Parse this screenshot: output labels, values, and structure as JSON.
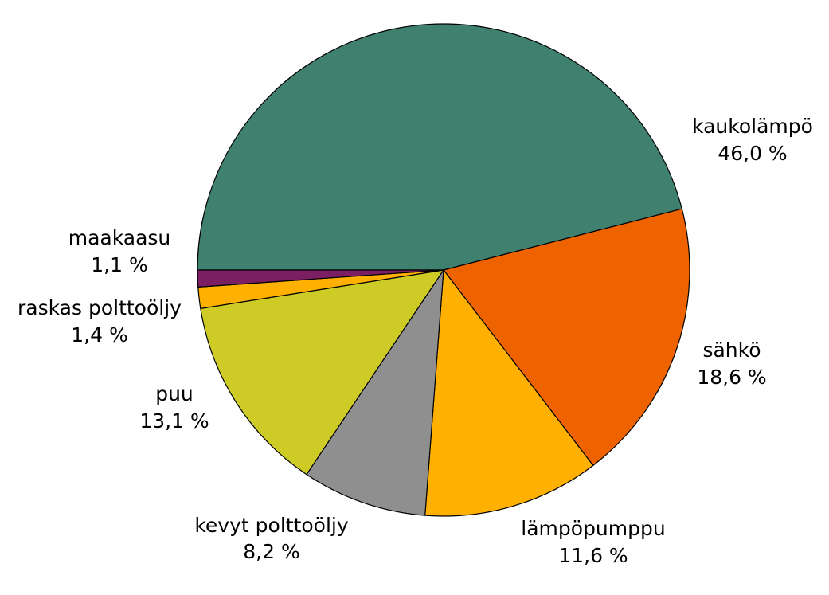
{
  "chart_data": {
    "type": "pie",
    "title": "",
    "slices": [
      {
        "label": "kaukolämpö",
        "value": 46.0,
        "value_label": "46,0 %",
        "color": "#3f806e"
      },
      {
        "label": "sähkö",
        "value": 18.6,
        "value_label": "18,6 %",
        "color": "#ee6300"
      },
      {
        "label": "lämpöpumppu",
        "value": 11.6,
        "value_label": "11,6 %",
        "color": "#ffb000"
      },
      {
        "label": "kevyt polttoöljy",
        "value": 8.2,
        "value_label": "8,2 %",
        "color": "#8f8f8f"
      },
      {
        "label": "puu",
        "value": 13.1,
        "value_label": "13,1 %",
        "color": "#cecb27"
      },
      {
        "label": "raskas polttoöljy",
        "value": 1.4,
        "value_label": "1,4 %",
        "color": "#ffb000"
      },
      {
        "label": "maakaasu",
        "value": 1.1,
        "value_label": "1,1 %",
        "color": "#7b1e62"
      }
    ],
    "start_direction": "left",
    "direction": "clockwise",
    "legend": "none"
  }
}
